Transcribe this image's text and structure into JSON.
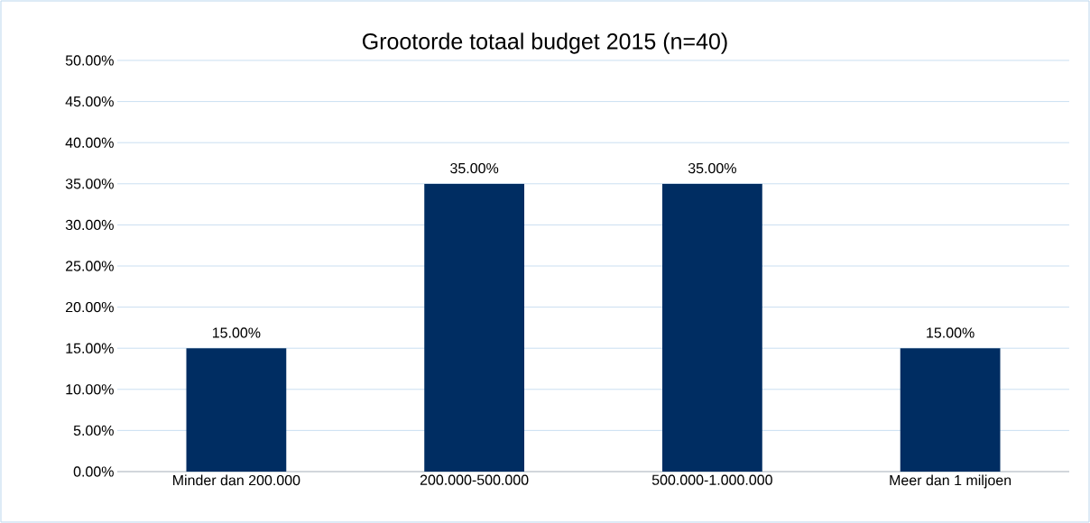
{
  "chart_data": {
    "type": "bar",
    "title": "Grootorde totaal budget 2015 (n=40)",
    "categories": [
      "Minder dan 200.000",
      "200.000-500.000",
      "500.000-1.000.000",
      "Meer dan 1 miljoen"
    ],
    "values": [
      15,
      35,
      35,
      15
    ],
    "color": "#002d62",
    "value_labels": [
      "15.00%",
      "35.00%",
      "35.00%",
      "15.00%"
    ],
    "ylim": [
      0,
      50
    ],
    "yticks": [
      {
        "value": 0,
        "label": "0.00%"
      },
      {
        "value": 5,
        "label": "5.00%"
      },
      {
        "value": 10,
        "label": "10.00%"
      },
      {
        "value": 15,
        "label": "15.00%"
      },
      {
        "value": 20,
        "label": "20.00%"
      },
      {
        "value": 25,
        "label": "25.00%"
      },
      {
        "value": 30,
        "label": "30.00%"
      },
      {
        "value": 35,
        "label": "35.00%"
      },
      {
        "value": 40,
        "label": "40.00%"
      },
      {
        "value": 45,
        "label": "45.00%"
      },
      {
        "value": 50,
        "label": "50.00%"
      }
    ],
    "grid": "y"
  }
}
